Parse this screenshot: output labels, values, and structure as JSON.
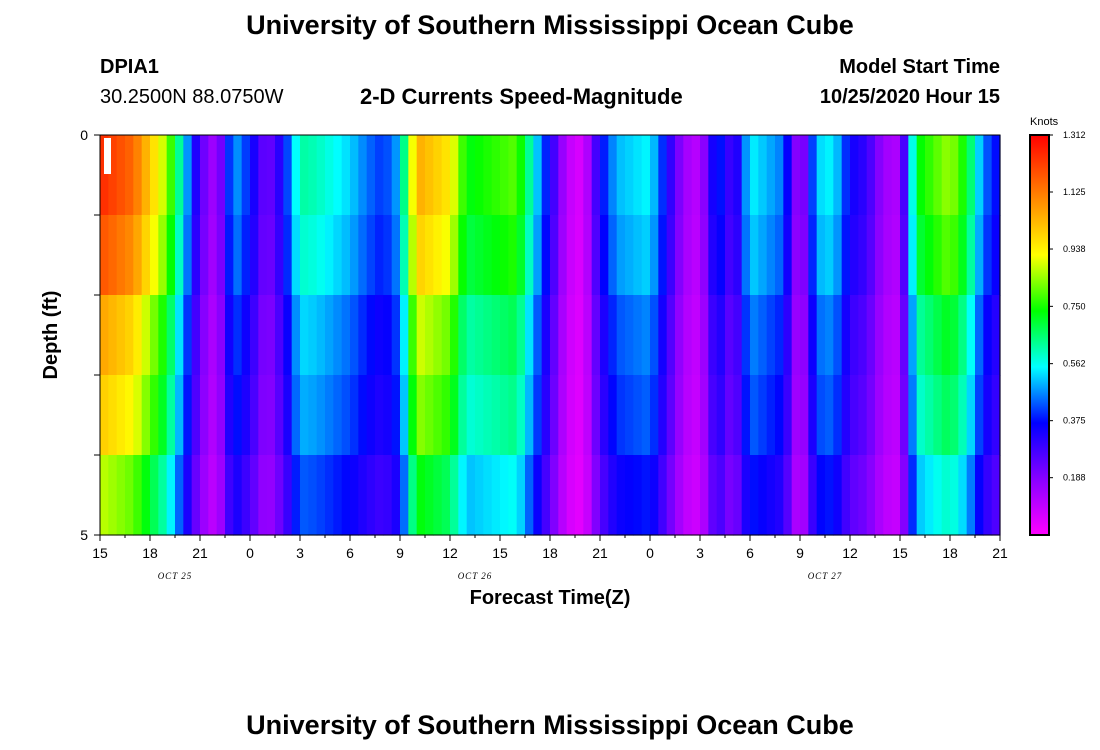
{
  "header": {
    "title": "University of Southern Mississippi Ocean Cube",
    "station": "DPIA1",
    "coords": "30.2500N 88.0750W",
    "subtitle": "2-D Currents Speed-Magnitude",
    "model_start_label": "Model Start Time",
    "model_start_value": "10/25/2020 Hour 15"
  },
  "footer": {
    "title": "University of Southern Mississippi Ocean Cube"
  },
  "chart_data": {
    "type": "heatmap",
    "xlabel": "Forecast Time(Z)",
    "ylabel": "Depth (ft)",
    "x_tick_labels": [
      "15",
      "18",
      "21",
      "0",
      "3",
      "6",
      "9",
      "12",
      "15",
      "18",
      "21",
      "0",
      "3",
      "6",
      "9",
      "12",
      "15",
      "18",
      "21"
    ],
    "date_labels": [
      {
        "label": "OCT 25",
        "at_tick": 1
      },
      {
        "label": "OCT 26",
        "at_tick": 7
      },
      {
        "label": "OCT 27",
        "at_tick": 14
      }
    ],
    "y_tick_labels": [
      "0",
      "5"
    ],
    "ylim": [
      0,
      5
    ],
    "x_range_hours": [
      0,
      54
    ],
    "colorbar": {
      "unit": "Knots",
      "min": 0,
      "max": 1.312,
      "tick_labels": [
        "1.312",
        "1.125",
        "0.938",
        "0.750",
        "0.562",
        "0.375",
        "0.188"
      ],
      "tick_values": [
        1.312,
        1.125,
        0.938,
        0.75,
        0.562,
        0.375,
        0.188
      ]
    },
    "depth_layers": 5,
    "surface_speed_profile": [
      [
        0,
        1.25
      ],
      [
        2,
        1.15
      ],
      [
        4,
        0.85
      ],
      [
        5,
        0.55
      ],
      [
        6,
        0.25
      ],
      [
        7,
        0.12
      ],
      [
        8,
        0.5
      ],
      [
        9,
        0.38
      ],
      [
        10,
        0.2
      ],
      [
        11,
        0.35
      ],
      [
        12,
        0.62
      ],
      [
        13,
        0.6
      ],
      [
        15,
        0.52
      ],
      [
        16,
        0.45
      ],
      [
        17,
        0.4
      ],
      [
        18,
        0.5
      ],
      [
        19,
        1.05
      ],
      [
        21,
        0.95
      ],
      [
        22,
        0.72
      ],
      [
        25,
        0.8
      ],
      [
        28,
        0.1
      ],
      [
        29,
        0.05
      ],
      [
        30,
        0.35
      ],
      [
        31,
        0.5
      ],
      [
        33,
        0.55
      ],
      [
        35,
        0.15
      ],
      [
        36,
        0.1
      ],
      [
        37,
        0.42
      ],
      [
        38,
        0.25
      ],
      [
        39,
        0.55
      ],
      [
        41,
        0.45
      ],
      [
        42,
        0.1
      ],
      [
        43,
        0.52
      ],
      [
        44,
        0.55
      ],
      [
        45,
        0.35
      ],
      [
        46,
        0.3
      ],
      [
        47,
        0.15
      ],
      [
        48,
        0.12
      ],
      [
        49,
        0.72
      ],
      [
        51,
        0.85
      ],
      [
        52,
        0.72
      ],
      [
        53,
        0.45
      ],
      [
        54,
        0.35
      ]
    ],
    "depth_factors": [
      1.0,
      0.95,
      0.85,
      0.8,
      0.7
    ]
  }
}
